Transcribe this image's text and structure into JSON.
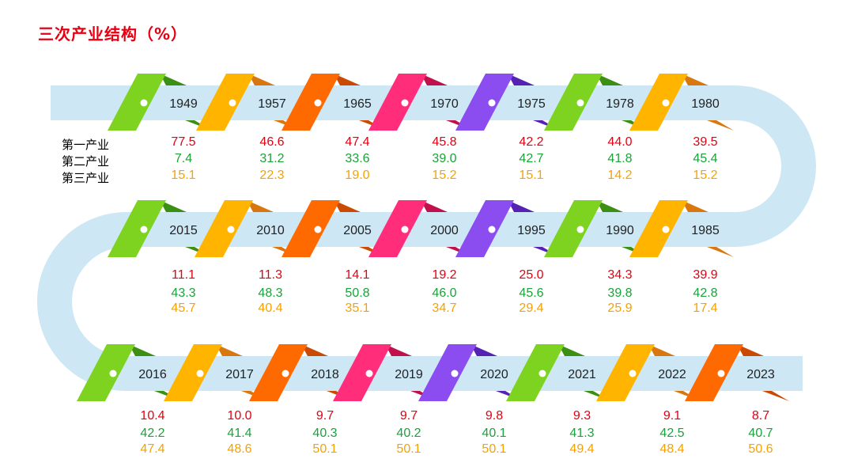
{
  "title": "三次产业结构（%）",
  "legend": [
    "第一产业",
    "第二产业",
    "第三产业"
  ],
  "colors": {
    "primary": "#e60012",
    "secondary": "#1aa33a",
    "tertiary": "#f5a200",
    "track": "#cde7f5"
  },
  "chart_data": {
    "type": "table",
    "rows": [
      [
        "1949",
        "1957",
        "1965",
        "1970",
        "1975",
        "1978",
        "1980"
      ],
      [
        "2015",
        "2010",
        "2005",
        "2000",
        "1995",
        "1990",
        "1985"
      ],
      [
        "2016",
        "2017",
        "2018",
        "2019",
        "2020",
        "2021",
        "2022",
        "2023"
      ]
    ],
    "series": [
      {
        "name": "第一产业",
        "values": {
          "1949": "77.5",
          "1957": "46.6",
          "1965": "47.4",
          "1970": "45.8",
          "1975": "42.2",
          "1978": "44.0",
          "1980": "39.5",
          "1985": "39.9",
          "1990": "34.3",
          "1995": "25.0",
          "2000": "19.2",
          "2005": "14.1",
          "2010": "11.3",
          "2015": "11.1",
          "2016": "10.4",
          "2017": "10.0",
          "2018": "9.7",
          "2019": "9.7",
          "2020": "9.8",
          "2021": "9.3",
          "2022": "9.1",
          "2023": "8.7"
        }
      },
      {
        "name": "第二产业",
        "values": {
          "1949": "7.4",
          "1957": "31.2",
          "1965": "33.6",
          "1970": "39.0",
          "1975": "42.7",
          "1978": "41.8",
          "1980": "45.4",
          "1985": "42.8",
          "1990": "39.8",
          "1995": "45.6",
          "2000": "46.0",
          "2005": "50.8",
          "2010": "48.3",
          "2015": "43.3",
          "2016": "42.2",
          "2017": "41.4",
          "2018": "40.3",
          "2019": "40.2",
          "2020": "40.1",
          "2021": "41.3",
          "2022": "42.5",
          "2023": "40.7"
        }
      },
      {
        "name": "第三产业",
        "values": {
          "1949": "15.1",
          "1957": "22.3",
          "1965": "19.0",
          "1970": "15.2",
          "1975": "15.1",
          "1978": "14.2",
          "1980": "15.2",
          "1985": "17.4",
          "1990": "25.9",
          "1995": "29.4",
          "2000": "34.7",
          "2005": "35.1",
          "2010": "40.4",
          "2015": "45.7",
          "2016": "47.4",
          "2017": "48.6",
          "2018": "50.1",
          "2019": "50.1",
          "2020": "50.1",
          "2021": "49.4",
          "2022": "48.4",
          "2023": "50.6"
        }
      }
    ]
  }
}
